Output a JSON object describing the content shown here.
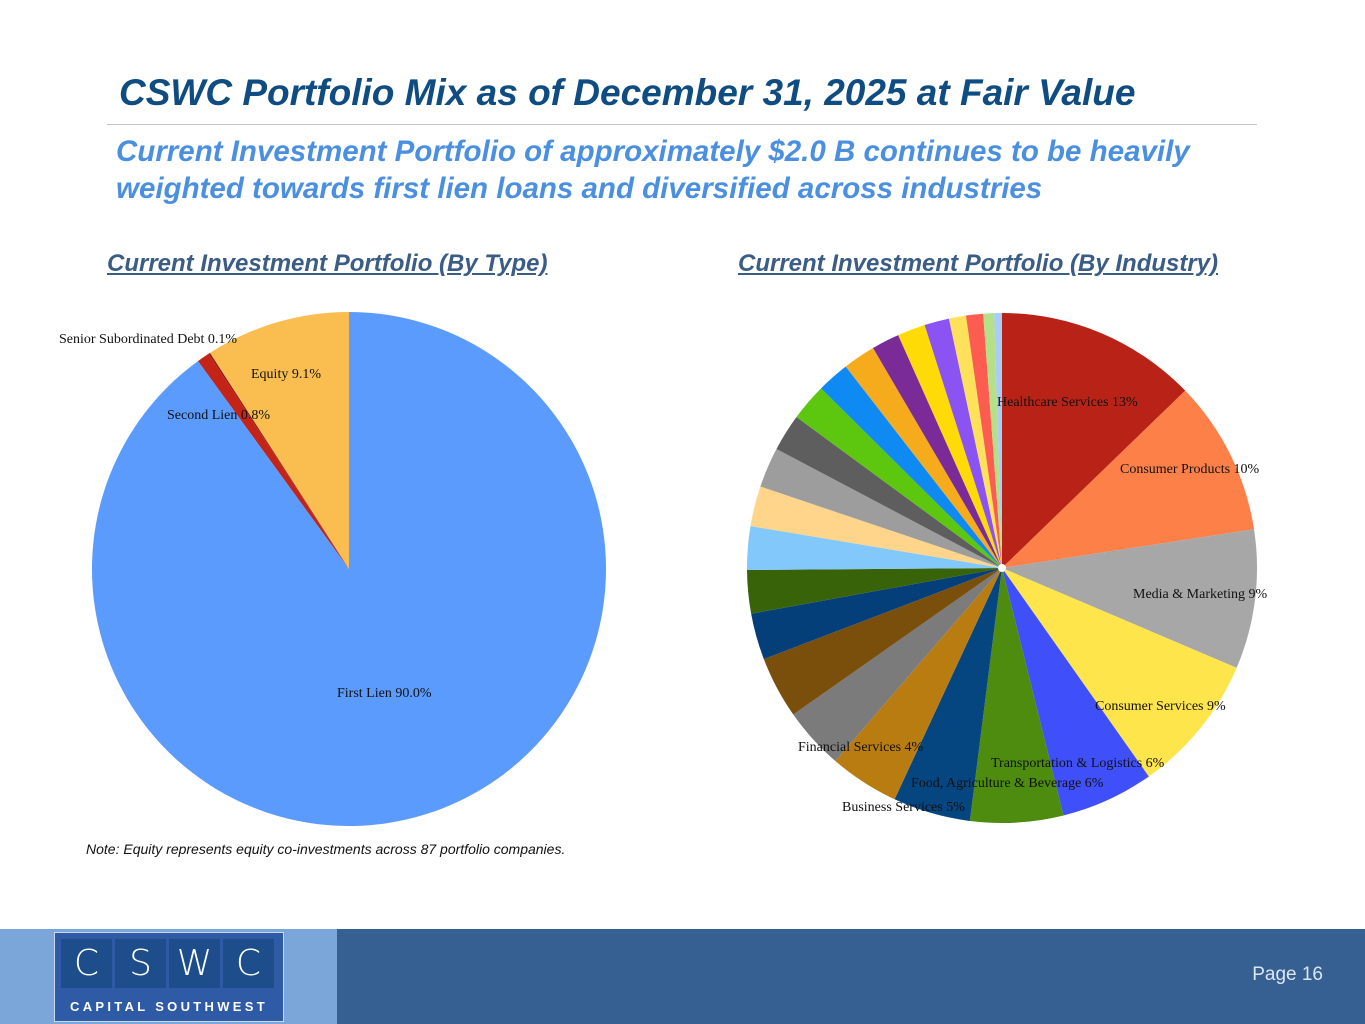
{
  "header": {
    "title": "CSWC Portfolio Mix as of December 31, 2025 at Fair Value",
    "subtitle_line1": "Current Investment Portfolio of approximately $2.0 B continues to be heavily",
    "subtitle_line2": "weighted towards first lien loans and diversified across industries"
  },
  "chart_data": [
    {
      "type": "pie",
      "title": "Current Investment Portfolio (By Type)",
      "start_angle_deg": 0,
      "direction": "counterclockwise",
      "slices": [
        {
          "name": "Equity",
          "label": "Equity 9.1%",
          "value": 9.1,
          "color": "#f9be4f"
        },
        {
          "name": "Senior Subordinated Debt",
          "label": "Senior Subordinated Debt 0.1%",
          "value": 0.1,
          "color": "#8a1a10"
        },
        {
          "name": "Second Lien",
          "label": "Second Lien 0.8%",
          "value": 0.8,
          "color": "#c42418"
        },
        {
          "name": "First Lien",
          "label": "First Lien 90.0%",
          "value": 90.0,
          "color": "#5b9bfd"
        }
      ]
    },
    {
      "type": "pie",
      "title": "Current Investment Portfolio (By Industry)",
      "start_angle_deg": 0,
      "direction": "clockwise",
      "slices": [
        {
          "name": "Healthcare Services",
          "label": "Healthcare Services 13%",
          "value": 13,
          "color": "#b92216"
        },
        {
          "name": "Consumer Products",
          "label": "Consumer Products 10%",
          "value": 10,
          "color": "#fe8049"
        },
        {
          "name": "Media & Marketing",
          "label": "Media & Marketing 9%",
          "value": 9,
          "color": "#a7a7a7"
        },
        {
          "name": "Consumer Services",
          "label": "Consumer Services 9%",
          "value": 9,
          "color": "#fee54c"
        },
        {
          "name": "Transportation & Logistics",
          "label": "Transportation & Logistics 6%",
          "value": 6,
          "color": "#3f50fb"
        },
        {
          "name": "Food, Agriculture & Beverage",
          "label": "Food, Agriculture & Beverage 6%",
          "value": 6,
          "color": "#4d8c0e"
        },
        {
          "name": "Business Services",
          "label": "Business Services 5%",
          "value": 5,
          "color": "#054580"
        },
        {
          "name": "",
          "label": "",
          "value": 4.5,
          "color": "#b97c11"
        },
        {
          "name": "Financial Services",
          "label": "Financial Services 4%",
          "value": 4,
          "color": "#7b7b7b"
        },
        {
          "name": "",
          "label": "",
          "value": 4,
          "color": "#7a4f0c"
        },
        {
          "name": "",
          "label": "",
          "value": 3,
          "color": "#053f7a"
        },
        {
          "name": "",
          "label": "",
          "value": 2.8,
          "color": "#386309"
        },
        {
          "name": "",
          "label": "",
          "value": 2.8,
          "color": "#82c8fb"
        },
        {
          "name": "",
          "label": "",
          "value": 2.6,
          "color": "#fed58a"
        },
        {
          "name": "",
          "label": "",
          "value": 2.6,
          "color": "#9d9d9d"
        },
        {
          "name": "",
          "label": "",
          "value": 2.4,
          "color": "#5e5e5e"
        },
        {
          "name": "",
          "label": "",
          "value": 2.4,
          "color": "#5dc70f"
        },
        {
          "name": "",
          "label": "",
          "value": 2.1,
          "color": "#0f8af2"
        },
        {
          "name": "",
          "label": "",
          "value": 2.1,
          "color": "#f6ab1c"
        },
        {
          "name": "",
          "label": "",
          "value": 1.8,
          "color": "#7a2b98"
        },
        {
          "name": "",
          "label": "",
          "value": 1.8,
          "color": "#fedb06"
        },
        {
          "name": "",
          "label": "",
          "value": 1.6,
          "color": "#8a53f2"
        },
        {
          "name": "",
          "label": "",
          "value": 1.1,
          "color": "#fee15b"
        },
        {
          "name": "",
          "label": "",
          "value": 1.1,
          "color": "#fd5c50"
        },
        {
          "name": "",
          "label": "",
          "value": 0.7,
          "color": "#b4e08a"
        },
        {
          "name": "",
          "label": "",
          "value": 0.5,
          "color": "#a8cdf7"
        }
      ]
    }
  ],
  "note": "Note: Equity represents equity co-investments across 87 portfolio companies.",
  "footer": {
    "logo_letters": [
      "C",
      "S",
      "W",
      "C"
    ],
    "logo_tagline": "CAPITAL SOUTHWEST",
    "page_label": "Page 16"
  }
}
